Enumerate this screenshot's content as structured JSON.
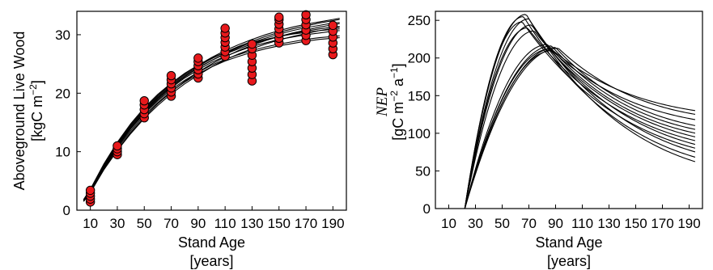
{
  "chart_data": [
    {
      "type": "scatter",
      "xlabel": "Stand Age",
      "xunits": "[years]",
      "ylabel": "Aboveground Live Wood",
      "yunits_base": "[kgC m",
      "yunits_sup": "−2",
      "yunits_end": "]",
      "xlim": [
        0,
        200
      ],
      "ylim": [
        0,
        34
      ],
      "xticks": [
        10,
        30,
        50,
        70,
        90,
        110,
        130,
        150,
        170,
        190
      ],
      "yticks": [
        0,
        10,
        20,
        30
      ],
      "grid": false,
      "marker_color": "#e8191c",
      "line_color": "#000000",
      "observations": [
        {
          "x": 10,
          "y": [
            1.4,
            1.9,
            2.4,
            2.9,
            3.4
          ]
        },
        {
          "x": 30,
          "y": [
            9.5,
            10.0,
            10.5,
            11.0
          ]
        },
        {
          "x": 50,
          "y": [
            15.8,
            16.5,
            17.2,
            18.0,
            18.7
          ]
        },
        {
          "x": 70,
          "y": [
            19.5,
            20.2,
            20.9,
            21.6,
            22.3,
            23.0
          ]
        },
        {
          "x": 90,
          "y": [
            22.6,
            23.3,
            24.0,
            24.7,
            25.4,
            26.0
          ]
        },
        {
          "x": 110,
          "y": [
            26.3,
            27.1,
            27.9,
            28.7,
            29.5,
            30.3,
            31.1
          ]
        },
        {
          "x": 130,
          "y": [
            22.1,
            23.2,
            24.3,
            25.4,
            26.5,
            27.6,
            28.4
          ]
        },
        {
          "x": 150,
          "y": [
            28.6,
            29.4,
            30.2,
            31.0,
            31.8,
            32.6,
            33.0
          ]
        },
        {
          "x": 170,
          "y": [
            29.0,
            29.9,
            30.8,
            31.7,
            32.6,
            33.4
          ]
        },
        {
          "x": 190,
          "y": [
            26.6,
            27.6,
            28.6,
            29.6,
            30.6,
            31.6
          ]
        }
      ],
      "model_curves": {
        "x": [
          5,
          10,
          20,
          30,
          40,
          50,
          60,
          70,
          80,
          90,
          100,
          110,
          120,
          130,
          140,
          150,
          160,
          170,
          180,
          190,
          195
        ],
        "series": [
          {
            "values": [
              1.6,
              3.2,
              7.2,
              10.6,
              13.6,
              16.2,
              18.4,
              20.3,
              21.9,
              23.3,
              24.5,
              25.5,
              26.3,
              27.0,
              27.6,
              28.1,
              28.5,
              28.9,
              29.2,
              29.4,
              29.5
            ]
          },
          {
            "values": [
              1.7,
              3.4,
              7.6,
              11.2,
              14.3,
              17.0,
              19.2,
              21.2,
              22.9,
              24.4,
              25.6,
              26.7,
              27.6,
              28.4,
              29.1,
              29.7,
              30.2,
              30.6,
              31.0,
              31.3,
              31.4
            ]
          },
          {
            "values": [
              1.6,
              3.3,
              7.4,
              10.9,
              14.0,
              16.6,
              18.9,
              20.9,
              22.6,
              24.0,
              25.3,
              26.3,
              27.2,
              28.0,
              28.6,
              29.2,
              29.6,
              30.0,
              30.3,
              30.6,
              30.7
            ]
          },
          {
            "values": [
              1.8,
              3.5,
              7.8,
              11.4,
              14.6,
              17.3,
              19.6,
              21.6,
              23.3,
              24.8,
              26.1,
              27.3,
              28.3,
              29.2,
              30.0,
              30.7,
              31.3,
              31.8,
              32.2,
              32.6,
              32.8
            ]
          },
          {
            "values": [
              1.5,
              3.1,
              7.0,
              10.3,
              13.3,
              15.9,
              18.2,
              20.2,
              22.0,
              23.6,
              25.0,
              26.2,
              27.3,
              28.2,
              29.0,
              29.7,
              30.3,
              30.8,
              31.3,
              31.7,
              31.9
            ]
          },
          {
            "values": [
              1.7,
              3.3,
              7.5,
              11.0,
              14.1,
              16.8,
              19.1,
              21.1,
              22.8,
              24.3,
              25.6,
              26.8,
              27.8,
              28.7,
              29.4,
              30.1,
              30.7,
              31.2,
              31.6,
              32.0,
              32.1
            ]
          },
          {
            "values": [
              1.6,
              3.2,
              7.3,
              10.8,
              13.9,
              16.5,
              18.7,
              20.6,
              22.2,
              23.6,
              24.8,
              25.8,
              26.6,
              27.3,
              27.9,
              28.4,
              28.8,
              29.2,
              29.5,
              29.7,
              29.8
            ]
          },
          {
            "values": [
              1.8,
              3.6,
              7.9,
              11.6,
              14.8,
              17.5,
              19.8,
              21.7,
              23.4,
              24.8,
              26.0,
              27.0,
              27.9,
              28.6,
              29.2,
              29.7,
              30.1,
              30.4,
              30.7,
              30.9,
              31.0
            ]
          },
          {
            "values": [
              1.5,
              3.0,
              6.9,
              10.2,
              13.1,
              15.7,
              17.9,
              19.9,
              21.6,
              23.1,
              24.5,
              25.7,
              26.7,
              27.6,
              28.4,
              29.1,
              29.7,
              30.2,
              30.7,
              31.1,
              31.3
            ]
          },
          {
            "values": [
              1.7,
              3.4,
              7.7,
              11.3,
              14.4,
              17.1,
              19.4,
              21.4,
              23.1,
              24.6,
              25.9,
              27.0,
              28.0,
              28.9,
              29.7,
              30.4,
              31.0,
              31.5,
              32.0,
              32.4,
              32.6
            ]
          }
        ]
      }
    },
    {
      "type": "line",
      "xlabel": "Stand Age",
      "xunits": "[years]",
      "ylabel": "NEP",
      "yunits_base": "[gC m",
      "yunits_sup1": "−2",
      "yunits_mid": " a",
      "yunits_sup2": "−1",
      "yunits_end": "]",
      "xlim": [
        0,
        200
      ],
      "ylim": [
        0,
        262
      ],
      "xticks": [
        10,
        30,
        50,
        70,
        90,
        110,
        130,
        150,
        170,
        190
      ],
      "xtick_labels": [
        "10",
        "30",
        "50",
        "70",
        "90",
        "110",
        "130",
        "150",
        "170",
        "190"
      ],
      "yticks": [
        0,
        50,
        100,
        150,
        200,
        250
      ],
      "grid": false,
      "line_color": "#000000",
      "peaks": [
        {
          "peak_age": 68,
          "peak": 258,
          "end": 62
        },
        {
          "peak_age": 66,
          "peak": 255,
          "end": 68
        },
        {
          "peak_age": 70,
          "peak": 252,
          "end": 75
        },
        {
          "peak_age": 65,
          "peak": 248,
          "end": 80
        },
        {
          "peak_age": 72,
          "peak": 244,
          "end": 85
        },
        {
          "peak_age": 69,
          "peak": 240,
          "end": 90
        },
        {
          "peak_age": 74,
          "peak": 236,
          "end": 95
        },
        {
          "peak_age": 84,
          "peak": 218,
          "end": 100
        },
        {
          "peak_age": 87,
          "peak": 216,
          "end": 105
        },
        {
          "peak_age": 90,
          "peak": 214,
          "end": 110
        },
        {
          "peak_age": 86,
          "peak": 212,
          "end": 118
        },
        {
          "peak_age": 92,
          "peak": 213,
          "end": 125
        },
        {
          "peak_age": 88,
          "peak": 210,
          "end": 130
        }
      ],
      "zero_age": 22
    }
  ]
}
